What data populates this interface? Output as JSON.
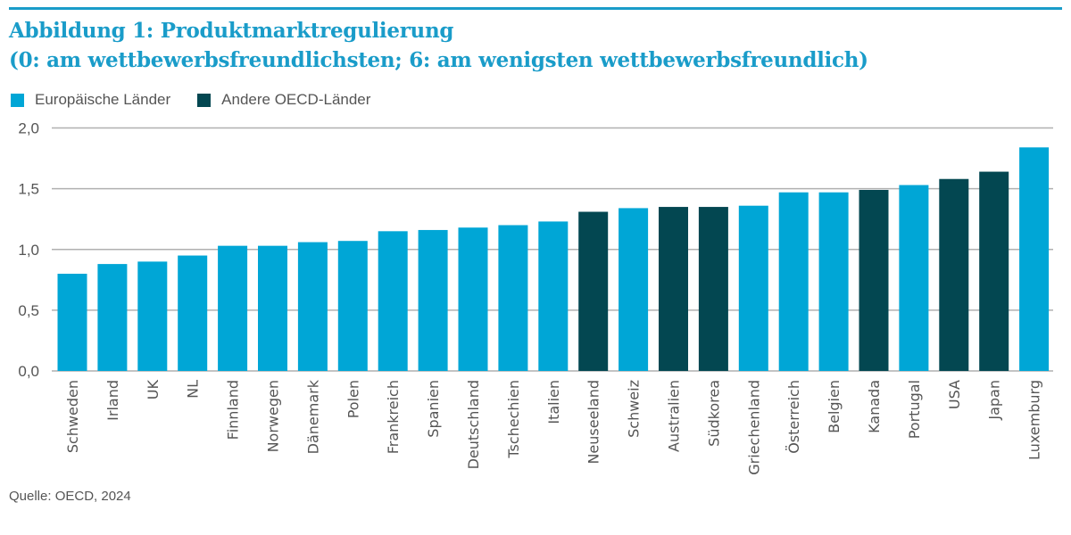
{
  "title_line1": "Abbildung 1: Produktmarktregulierung",
  "title_line2": "(0: am wettbewerbsfreundlichsten; 6: am wenigsten wettbewerbsfreundlich)",
  "source": "Quelle: OECD, 2024",
  "colors": {
    "european": "#00a6d6",
    "other": "#034751",
    "accent": "#1a9cc9",
    "grid": "#b0b0b0"
  },
  "chart_data": {
    "type": "bar",
    "title": "Abbildung 1: Produktmarktregulierung (0: am wettbewerbsfreundlichsten; 6: am wenigsten wettbewerbsfreundlich)",
    "xlabel": "",
    "ylabel": "",
    "ylim": [
      0,
      2.0
    ],
    "yticks": [
      "0,0",
      "0,5",
      "1,0",
      "1,5",
      "2,0"
    ],
    "ytick_values": [
      0,
      0.5,
      1.0,
      1.5,
      2.0
    ],
    "grid": true,
    "legend_position": "top-left",
    "legend": [
      {
        "name": "Europäische Länder",
        "group": "european"
      },
      {
        "name": "Andere OECD-Länder",
        "group": "other"
      }
    ],
    "categories": [
      "Schweden",
      "Irland",
      "UK",
      "NL",
      "Finnland",
      "Norwegen",
      "Dänemark",
      "Polen",
      "Frankreich",
      "Spanien",
      "Deutschland",
      "Tschechien",
      "Italien",
      "Neuseeland",
      "Schweiz",
      "Australien",
      "Südkorea",
      "Griechenland",
      "Österreich",
      "Belgien",
      "Kanada",
      "Portugal",
      "USA",
      "Japan",
      "Luxemburg"
    ],
    "values": [
      0.8,
      0.88,
      0.9,
      0.95,
      1.03,
      1.03,
      1.06,
      1.07,
      1.15,
      1.16,
      1.18,
      1.2,
      1.23,
      1.31,
      1.34,
      1.35,
      1.35,
      1.36,
      1.47,
      1.47,
      1.49,
      1.53,
      1.58,
      1.64,
      1.84
    ],
    "groups": [
      "european",
      "european",
      "european",
      "european",
      "european",
      "european",
      "european",
      "european",
      "european",
      "european",
      "european",
      "european",
      "european",
      "other",
      "european",
      "other",
      "other",
      "european",
      "european",
      "european",
      "other",
      "european",
      "other",
      "other",
      "european"
    ]
  }
}
